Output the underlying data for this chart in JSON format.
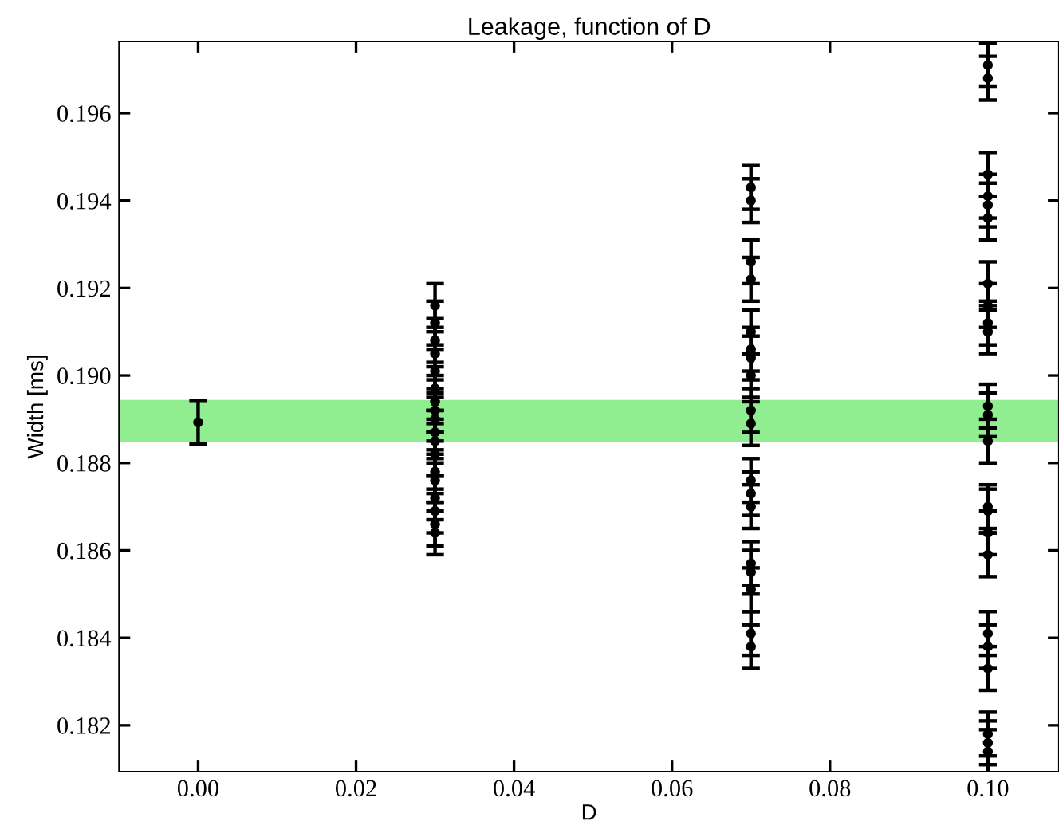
{
  "chart_data": {
    "type": "scatter",
    "title": "Leakage, function of D",
    "xlabel": "D",
    "ylabel": "Width [ms]",
    "xlim": [
      -0.01,
      0.109
    ],
    "xticks": [
      {
        "value": 0,
        "label": "0.00"
      },
      {
        "value": 0.02,
        "label": "0.02"
      },
      {
        "value": 0.04,
        "label": "0.04"
      },
      {
        "value": 0.06,
        "label": "0.06"
      },
      {
        "value": 0.08,
        "label": "0.08"
      },
      {
        "value": 0.1,
        "label": "0.10"
      }
    ],
    "ylim": [
      0.18094,
      0.19764
    ],
    "yticks": [
      0.182,
      0.184,
      0.186,
      0.188,
      {
        "value": 0.19,
        "label": "0.190"
      },
      0.192,
      0.194,
      0.196
    ],
    "grid": false,
    "marker": "circle",
    "bands": [
      {
        "axis": "y",
        "from": 0.18849,
        "to": 0.18944,
        "color": "#90ee90"
      }
    ],
    "series": [
      {
        "color": "#000000",
        "x": [
          0,
          0.03,
          0.03,
          0.03,
          0.03,
          0.03,
          0.03,
          0.03,
          0.03,
          0.03,
          0.03,
          0.03,
          0.03,
          0.03,
          0.03,
          0.03,
          0.03,
          0.03,
          0.03,
          0.07,
          0.07,
          0.07,
          0.07,
          0.07,
          0.07,
          0.07,
          0.07,
          0.07,
          0.07,
          0.07,
          0.07,
          0.07,
          0.07,
          0.07,
          0.07,
          0.07,
          0.07,
          0.1,
          0.1,
          0.1,
          0.1,
          0.1,
          0.1,
          0.1,
          0.1,
          0.1,
          0.1,
          0.1,
          0.1,
          0.1,
          0.1,
          0.1,
          0.1,
          0.1,
          0.1,
          0.1,
          0.1,
          0.1,
          0.1,
          0.1
        ],
        "values": [
          0.18893,
          0.1916,
          0.1912,
          0.1908,
          0.1905,
          0.1901,
          0.1897,
          0.1894,
          0.1892,
          0.189,
          0.1887,
          0.1885,
          0.1882,
          0.1878,
          0.1876,
          0.1872,
          0.1869,
          0.1866,
          0.1864,
          0.1943,
          0.194,
          0.1926,
          0.1922,
          0.191,
          0.1906,
          0.1904,
          0.19,
          0.1892,
          0.1889,
          0.1876,
          0.1873,
          0.187,
          0.1857,
          0.1855,
          0.1851,
          0.1841,
          0.1838,
          0.1971,
          0.1968,
          0.1946,
          0.1941,
          0.1939,
          0.1936,
          0.1921,
          0.1916,
          0.1912,
          0.191,
          0.1893,
          0.1891,
          0.1885,
          0.187,
          0.1869,
          0.1864,
          0.1859,
          0.1841,
          0.1838,
          0.1833,
          0.1818,
          0.1816,
          0.1814
        ],
        "errors": [
          0.0005,
          0.0005,
          0.0005,
          0.0005,
          0.0005,
          0.0005,
          0.0005,
          0.0005,
          0.0005,
          0.0005,
          0.0005,
          0.0005,
          0.0005,
          0.0005,
          0.0005,
          0.0005,
          0.0005,
          0.0005,
          0.0005,
          0.0005,
          0.0005,
          0.0005,
          0.0005,
          0.0005,
          0.0005,
          0.0005,
          0.0005,
          0.0005,
          0.0005,
          0.0005,
          0.0005,
          0.0005,
          0.0005,
          0.0005,
          0.0005,
          0.0005,
          0.0005,
          0.0005,
          0.0005,
          0.0005,
          0.0005,
          0.0005,
          0.0005,
          0.0005,
          0.0005,
          0.0005,
          0.0005,
          0.0005,
          0.0005,
          0.0005,
          0.0005,
          0.0005,
          0.0005,
          0.0005,
          0.0005,
          0.0005,
          0.0005,
          0.0005,
          0.0005,
          0.0005
        ]
      }
    ]
  }
}
